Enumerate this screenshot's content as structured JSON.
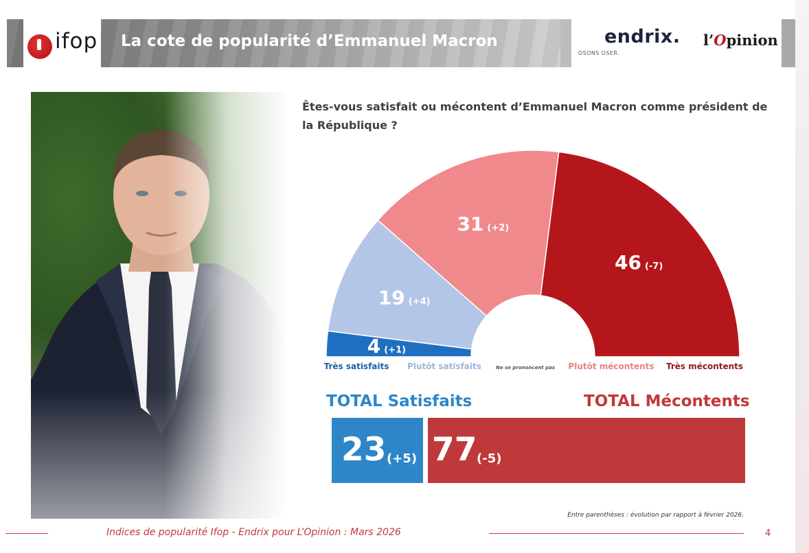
{
  "header": {
    "title": "La cote de popularité d’Emmanuel Macron",
    "logo_ifop": "ifop",
    "logo_endrix": "endrix.",
    "endrix_tagline": "OSONS OSER.",
    "logo_opinion_prefix": "l’",
    "logo_opinion_o": "O",
    "logo_opinion_rest": "pinion"
  },
  "question": "Êtes-vous satisfait ou mécontent d’Emmanuel Macron comme président de la République ?",
  "chart_data": {
    "type": "pie",
    "subtype": "half-donut",
    "title": "",
    "categories": [
      "Très satisfaits",
      "Plutôt satisfaits",
      "Ne se prononcent pas",
      "Plutôt mécontents",
      "Très mécontents"
    ],
    "values": [
      4,
      19,
      0,
      31,
      46
    ],
    "changes": [
      "(+1)",
      "(+4)",
      "",
      "(+2)",
      "(-7)"
    ],
    "colors": [
      "#1f6fc1",
      "#b4c6e7",
      "#888888",
      "#f0898b",
      "#b5161c"
    ],
    "label_colors": [
      "#1f5fa8",
      "#9fb4d9",
      "#555555",
      "#e48385",
      "#8e1b1b"
    ],
    "totals": [
      {
        "label": "TOTAL Satisfaits",
        "value": 23,
        "change": "(+5)",
        "color": "#2e86c9"
      },
      {
        "label": "TOTAL Mécontents",
        "value": 77,
        "change": "(-5)",
        "color": "#c0393a"
      }
    ]
  },
  "totals": {
    "satisfaits": {
      "label": "TOTAL Satisfaits",
      "value": "23",
      "change": "(+5)"
    },
    "mecontents": {
      "label": "TOTAL Mécontents",
      "value": "77",
      "change": "(-5)"
    }
  },
  "note": "Entre parenthèses : évolution par rapport à février 2026.",
  "footer": {
    "text": "Indices de popularité Ifop - Endrix pour L’Opinion : Mars 2026",
    "page": "4"
  }
}
